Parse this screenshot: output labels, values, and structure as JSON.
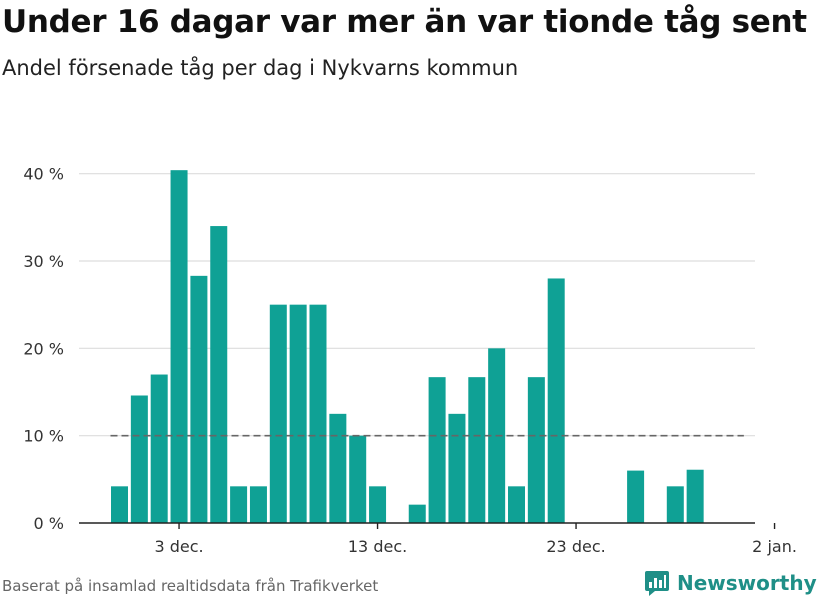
{
  "title": "Under 16 dagar var mer än var tionde tåg sent",
  "subtitle": "Andel försenade tåg per dag i Nykvarns kommun",
  "footer": {
    "source": "Baserat på insamlad realtidsdata från Trafikverket",
    "brand": "Newsworthy"
  },
  "colors": {
    "bar": "#0fa195",
    "grid": "#dddddd",
    "reference": "#666666",
    "brand": "#1f8f87"
  },
  "chart_data": {
    "type": "bar",
    "title": "Under 16 dagar var mer än var tionde tåg sent",
    "subtitle": "Andel försenade tåg per dag i Nykvarns kommun",
    "xlabel": "",
    "ylabel": "",
    "x": [
      "2021-11-30",
      "2021-12-01",
      "2021-12-02",
      "2021-12-03",
      "2021-12-04",
      "2021-12-05",
      "2021-12-06",
      "2021-12-07",
      "2021-12-08",
      "2021-12-09",
      "2021-12-10",
      "2021-12-11",
      "2021-12-12",
      "2021-12-13",
      "2021-12-14",
      "2021-12-15",
      "2021-12-16",
      "2021-12-17",
      "2021-12-18",
      "2021-12-19",
      "2021-12-20",
      "2021-12-21",
      "2021-12-22",
      "2021-12-23",
      "2021-12-24",
      "2021-12-25",
      "2021-12-26",
      "2021-12-27",
      "2021-12-28",
      "2021-12-29",
      "2021-12-30",
      "2021-12-31"
    ],
    "values": [
      4.2,
      14.6,
      17.0,
      40.4,
      28.3,
      34.0,
      4.2,
      4.2,
      25.0,
      25.0,
      25.0,
      12.5,
      10.0,
      4.2,
      0,
      2.1,
      16.7,
      12.5,
      16.7,
      20.0,
      4.2,
      16.7,
      28.0,
      0,
      0,
      0,
      6.0,
      0,
      4.2,
      6.1,
      0,
      0
    ],
    "ylim": [
      0,
      45
    ],
    "yticks": [
      0,
      10,
      20,
      30,
      40
    ],
    "ytick_labels": [
      "0 %",
      "10 %",
      "20 %",
      "30 %",
      "40 %"
    ],
    "xticks": [
      "2021-12-03",
      "2021-12-13",
      "2021-12-23",
      "2022-01-02"
    ],
    "xtick_labels": [
      "3 dec.",
      "13 dec.",
      "23 dec.",
      "2 jan."
    ],
    "reference_line": {
      "value": 10,
      "from": "2021-11-30",
      "to": "2021-12-31",
      "style": "dashed"
    },
    "grid": true,
    "legend": "none"
  }
}
